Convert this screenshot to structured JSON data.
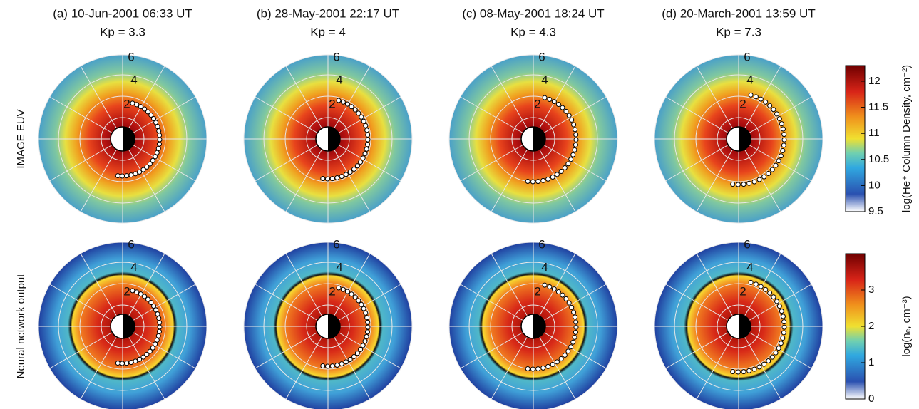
{
  "panels": [
    {
      "title": "(a) 10-Jun-2001 06:33 UT",
      "kp": "Kp = 3.3"
    },
    {
      "title": "(b) 28-May-2001 22:17 UT",
      "kp": "Kp = 4"
    },
    {
      "title": "(c) 08-May-2001 18:24 UT",
      "kp": "Kp = 4.3"
    },
    {
      "title": "(d) 20-March-2001 13:59 UT",
      "kp": "Kp = 7.3"
    }
  ],
  "rows": [
    "IMAGE EUV",
    "Neural network output"
  ],
  "ring_labels": [
    "6",
    "4",
    "2"
  ],
  "colorbars": [
    {
      "label": "log(He⁺ Column Density, cm⁻²)",
      "lim": [
        9.5,
        12.3
      ],
      "ticks": [
        9.5,
        10,
        10.5,
        11,
        11.5,
        12
      ]
    },
    {
      "label": "log(nₑ, cm⁻³)",
      "lim": [
        0,
        4
      ],
      "ticks": [
        0,
        1,
        2,
        3
      ]
    }
  ]
}
